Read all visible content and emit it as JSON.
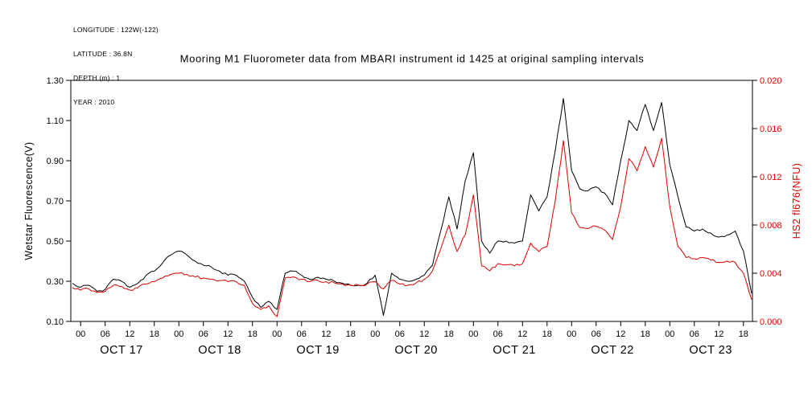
{
  "header_info": {
    "lines": [
      "LONGITUDE : 122W(-122)",
      "LATITUDE : 36.8N",
      "DEPTH (m) : 1",
      "YEAR : 2010"
    ]
  },
  "chart_data": {
    "type": "line",
    "title": "Mooring M1 Fluorometer data from MBARI instrument id 1425 at original sampling intervals",
    "ylabel_left": "Wetstar Fluorescence(V)",
    "ylabel_right": "HS2 fl676(NFU)",
    "colors": {
      "wetstar": "#000000",
      "hs2": "#dd0000",
      "axis": "#000000"
    },
    "grid": false,
    "legend": "none",
    "y_left": {
      "min": 0.1,
      "max": 1.3,
      "ticks": [
        0.1,
        0.3,
        0.5,
        0.7,
        0.9,
        1.1,
        1.3
      ],
      "tick_labels": [
        "0.10",
        "0.30",
        "0.50",
        "0.70",
        "0.90",
        "1.10",
        "1.30"
      ]
    },
    "y_right": {
      "min": 0.0,
      "max": 0.02,
      "ticks": [
        0.0,
        0.004,
        0.008,
        0.012,
        0.016,
        0.02
      ],
      "tick_labels": [
        "0.000",
        "0.004",
        "0.008",
        "0.012",
        "0.016",
        "0.020"
      ]
    },
    "x_axis": {
      "unit": "hours since 2010-10-17 00:00",
      "min": -2.4,
      "max": 164.2,
      "hour_tick_labels": [
        "00",
        "06",
        "12",
        "18"
      ],
      "day_labels": [
        "OCT 17",
        "OCT 18",
        "OCT 19",
        "OCT 20",
        "OCT 21",
        "OCT 22",
        "OCT 23"
      ],
      "day_label_center_hour": 10
    },
    "x_hours": [
      -2,
      0,
      2,
      4,
      6,
      8,
      10,
      12,
      14,
      16,
      18,
      20,
      22,
      24,
      26,
      28,
      30,
      32,
      34,
      36,
      38,
      40,
      42,
      44,
      46,
      48,
      50,
      52,
      54,
      56,
      58,
      60,
      62,
      64,
      66,
      68,
      70,
      72,
      74,
      76,
      78,
      80,
      82,
      84,
      86,
      88,
      90,
      92,
      94,
      96,
      98,
      100,
      102,
      104,
      106,
      108,
      110,
      112,
      114,
      116,
      118,
      120,
      122,
      124,
      126,
      128,
      130,
      132,
      134,
      136,
      138,
      140,
      142,
      144,
      146,
      148,
      150,
      152,
      154,
      156,
      158,
      160,
      162,
      164
    ],
    "series": [
      {
        "name": "Wetstar Fluorescence(V)",
        "axis": "left",
        "color": "#000000",
        "values": [
          0.29,
          0.27,
          0.28,
          0.25,
          0.26,
          0.31,
          0.3,
          0.27,
          0.29,
          0.33,
          0.35,
          0.39,
          0.43,
          0.45,
          0.43,
          0.4,
          0.38,
          0.37,
          0.35,
          0.33,
          0.33,
          0.3,
          0.22,
          0.17,
          0.2,
          0.16,
          0.34,
          0.35,
          0.33,
          0.31,
          0.32,
          0.31,
          0.3,
          0.29,
          0.28,
          0.28,
          0.29,
          0.33,
          0.13,
          0.34,
          0.31,
          0.3,
          0.31,
          0.33,
          0.38,
          0.55,
          0.72,
          0.56,
          0.8,
          0.94,
          0.5,
          0.44,
          0.5,
          0.5,
          0.49,
          0.5,
          0.73,
          0.65,
          0.72,
          0.95,
          1.21,
          0.85,
          0.76,
          0.75,
          0.77,
          0.74,
          0.68,
          0.9,
          1.1,
          1.05,
          1.18,
          1.05,
          1.19,
          0.88,
          0.72,
          0.57,
          0.55,
          0.56,
          0.54,
          0.52,
          0.53,
          0.55,
          0.45,
          0.24
        ]
      },
      {
        "name": "HS2 fl676(NFU)",
        "axis": "right",
        "color": "#dd0000",
        "values": [
          0.0028,
          0.0026,
          0.0027,
          0.0024,
          0.0025,
          0.003,
          0.0029,
          0.0026,
          0.0028,
          0.0031,
          0.0033,
          0.0036,
          0.0039,
          0.004,
          0.0039,
          0.0037,
          0.0036,
          0.0035,
          0.0034,
          0.0033,
          0.0033,
          0.003,
          0.0015,
          0.001,
          0.0013,
          0.0004,
          0.0036,
          0.0037,
          0.0035,
          0.0033,
          0.0034,
          0.0033,
          0.0032,
          0.0031,
          0.003,
          0.003,
          0.0031,
          0.0033,
          0.0027,
          0.0034,
          0.0031,
          0.003,
          0.0032,
          0.0035,
          0.0042,
          0.006,
          0.008,
          0.0058,
          0.0072,
          0.0105,
          0.0046,
          0.0042,
          0.0048,
          0.0047,
          0.0046,
          0.0048,
          0.0065,
          0.0058,
          0.0062,
          0.01,
          0.015,
          0.009,
          0.0078,
          0.0077,
          0.0079,
          0.0076,
          0.0068,
          0.0095,
          0.0135,
          0.0125,
          0.0145,
          0.0128,
          0.0152,
          0.0095,
          0.0062,
          0.0053,
          0.0052,
          0.0053,
          0.0051,
          0.0049,
          0.005,
          0.0049,
          0.004,
          0.0018
        ]
      }
    ]
  }
}
